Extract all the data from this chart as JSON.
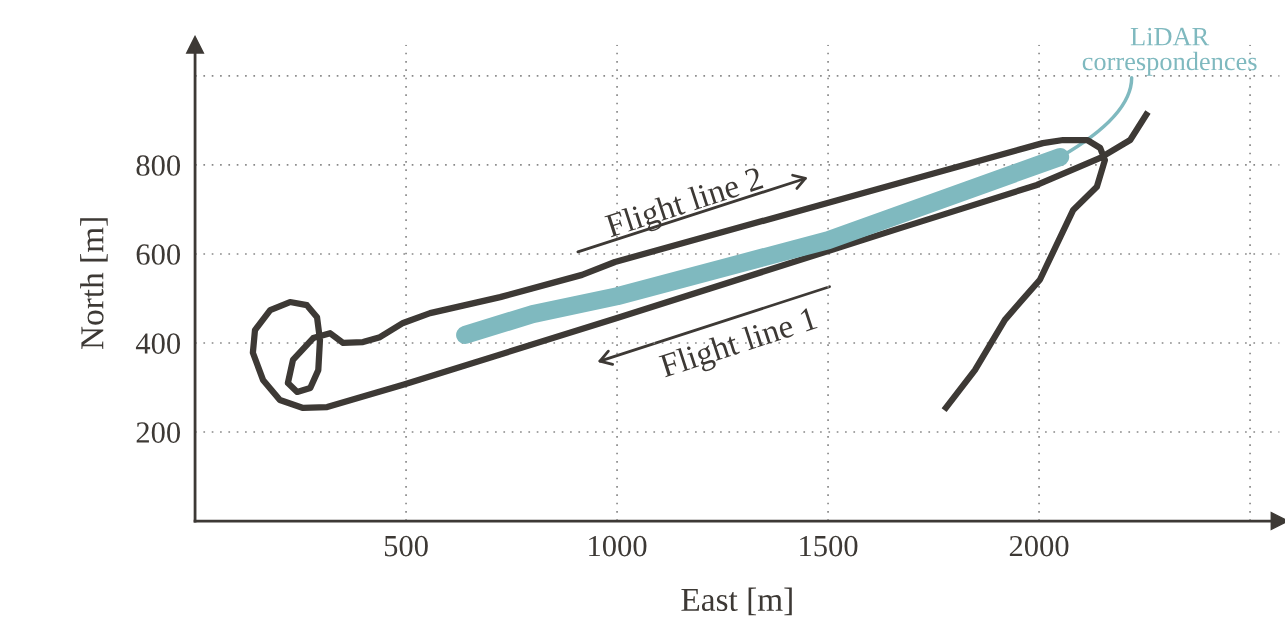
{
  "chart_data": {
    "type": "line",
    "xlabel": "East [m]",
    "ylabel": "North [m]",
    "xlim": [
      0,
      2570
    ],
    "ylim": [
      0,
      1070
    ],
    "xticks": [
      500,
      1000,
      1500,
      2000,
      {
        "value": 2500,
        "label": null
      }
    ],
    "yticks": [
      200,
      400,
      600,
      800,
      {
        "value": 1000,
        "label": null
      }
    ],
    "grid": true,
    "line_style": "solid",
    "marker": "none",
    "series": [
      {
        "color": "#3d3935",
        "x": [
          1775,
          1848,
          1919,
          2002,
          2081,
          2137,
          2156,
          2145,
          2114,
          2057,
          2009,
          1671,
          995,
          917,
          723,
          557,
          493,
          438,
          398,
          351,
          320,
          280,
          232,
          220,
          242,
          273,
          292,
          296,
          289,
          265,
          225,
          178,
          142,
          137,
          161,
          201,
          256,
          313,
          493,
          1000,
          1671,
          1995,
          2145,
          2216,
          2258
        ],
        "values": [
          249,
          339,
          452,
          542,
          699,
          751,
          811,
          838,
          856,
          856,
          849,
          760,
          582,
          553,
          503,
          467,
          445,
          413,
          402,
          400,
          422,
          411,
          362,
          310,
          290,
          299,
          339,
          407,
          458,
          485,
          492,
          474,
          429,
          378,
          317,
          272,
          254,
          256,
          306,
          456,
          658,
          755,
          816,
          856,
          919
        ]
      },
      {
        "name": "LiDAR correspondences",
        "color": "#7fb9bf",
        "x": [
          640,
          800,
          1000,
          1500,
          2050
        ],
        "values": [
          418,
          465,
          505,
          631,
          818
        ]
      }
    ],
    "annotations": [
      "Flight line 2",
      "Flight line 1"
    ]
  }
}
